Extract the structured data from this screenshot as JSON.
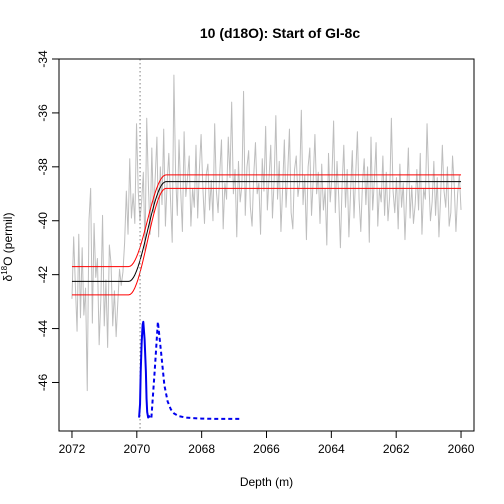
{
  "chart_data": {
    "type": "line",
    "title": "10 (d18O): Start of GI-8c",
    "xlabel": "Depth (m)",
    "ylabel_prefix": "δ",
    "ylabel_sup": "18",
    "ylabel_suffix": "O (permil)",
    "xlim": [
      2072.4,
      2059.6
    ],
    "ylim": [
      -47.8,
      -34.0
    ],
    "x_ticks": [
      2072,
      2070,
      2068,
      2066,
      2064,
      2062,
      2060
    ],
    "y_ticks": [
      -46,
      -44,
      -42,
      -40,
      -38,
      -36,
      -34
    ],
    "vline_x": 2069.9,
    "grey_series": {
      "x_start": 2072.0,
      "x_end": 2060.0,
      "values": [
        -42.9,
        -40.6,
        -42.4,
        -44.1,
        -40.5,
        -43.6,
        -41.0,
        -43.5,
        -42.5,
        -46.3,
        -40.0,
        -38.8,
        -43.8,
        -40.1,
        -42.1,
        -41.4,
        -44.6,
        -42.9,
        -39.8,
        -43.9,
        -42.2,
        -44.7,
        -40.9,
        -41.6,
        -43.9,
        -42.6,
        -44.3,
        -43.0,
        -41.8,
        -42.4,
        -41.9,
        -40.8,
        -38.9,
        -40.5,
        -37.7,
        -39.9,
        -39.0,
        -40.1,
        -36.4,
        -38.9,
        -40.0,
        -39.3,
        -38.2,
        -41.1,
        -36.2,
        -38.7,
        -40.5,
        -37.3,
        -39.7,
        -38.4,
        -36.9,
        -40.6,
        -38.0,
        -39.4,
        -36.6,
        -40.2,
        -38.6,
        -37.5,
        -39.2,
        -40.8,
        -34.6,
        -38.3,
        -39.8,
        -37.0,
        -38.9,
        -40.4,
        -36.7,
        -39.1,
        -38.4,
        -37.6,
        -40.2,
        -38.8,
        -39.5,
        -37.2,
        -39.9,
        -38.1,
        -36.8,
        -38.7,
        -40.1,
        -38.3,
        -37.9,
        -39.6,
        -38.5,
        -40.0,
        -36.4,
        -38.9,
        -39.7,
        -38.2,
        -37.0,
        -40.3,
        -38.6,
        -39.2,
        -36.9,
        -38.4,
        -35.6,
        -39.0,
        -38.1,
        -40.6,
        -37.8,
        -39.3,
        -38.7,
        -35.2,
        -39.8,
        -38.0,
        -37.4,
        -39.5,
        -40.2,
        -38.3,
        -37.1,
        -39.0,
        -38.6,
        -40.5,
        -37.7,
        -38.9,
        -36.5,
        -39.6,
        -38.4,
        -37.2,
        -39.9,
        -38.5,
        -36.1,
        -39.2,
        -37.8,
        -40.4,
        -38.8,
        -37.0,
        -39.5,
        -38.2,
        -36.6,
        -39.7,
        -40.3,
        -38.1,
        -37.6,
        -39.1,
        -38.6,
        -35.9,
        -39.4,
        -38.3,
        -40.7,
        -38.0,
        -37.3,
        -39.8,
        -38.5,
        -36.8,
        -39.0,
        -38.2,
        -40.1,
        -37.9,
        -39.6,
        -38.8,
        -40.9,
        -37.5,
        -39.3,
        -38.4,
        -36.3,
        -39.7,
        -37.8,
        -39.1,
        -41.0,
        -38.7,
        -37.2,
        -39.5,
        -38.1,
        -40.6,
        -38.9,
        -37.4,
        -39.9,
        -38.3,
        -36.7,
        -39.2,
        -40.4,
        -38.6,
        -37.7,
        -39.4,
        -38.0,
        -40.8,
        -36.9,
        -39.6,
        -38.5,
        -37.1,
        -40.2,
        -38.8,
        -39.3,
        -37.6,
        -39.8,
        -38.2,
        -40.0,
        -39.1,
        -36.2,
        -38.9,
        -39.7,
        -38.4,
        -40.3,
        -37.9,
        -39.5,
        -38.6,
        -40.7,
        -39.0,
        -37.3,
        -39.9,
        -38.7,
        -40.1,
        -39.4,
        -38.1,
        -39.6,
        -37.5,
        -40.5,
        -38.8,
        -39.2,
        -36.4,
        -38.5,
        -40.0,
        -39.3,
        -37.8,
        -39.8,
        -38.4,
        -40.6,
        -39.1,
        -37.2,
        -38.9,
        -39.5,
        -38.0,
        -40.2,
        -39.7,
        -37.6,
        -38.7,
        -40.4,
        -39.0,
        -38.3,
        -39.6
      ]
    },
    "ramp_model": {
      "x_transition_start": 2070.25,
      "x_transition_end": 2069.1,
      "center": {
        "y_before": -42.25,
        "y_after": -38.55
      },
      "upper": {
        "y_before": -41.7,
        "y_after": -38.3
      },
      "lower": {
        "y_before": -42.75,
        "y_after": -38.8
      }
    },
    "density_solid": {
      "x": [
        2069.93,
        2069.9,
        2069.88,
        2069.85,
        2069.82,
        2069.8,
        2069.76,
        2069.72,
        2069.7,
        2069.68,
        2069.65,
        2069.62,
        2069.6
      ],
      "y": [
        -47.3,
        -46.8,
        -45.6,
        -44.5,
        -43.85,
        -43.75,
        -44.4,
        -45.6,
        -46.6,
        -47.1,
        -47.3,
        -47.25,
        -47.3
      ]
    },
    "density_dashed": {
      "x": [
        2069.55,
        2069.45,
        2069.35,
        2069.25,
        2069.15,
        2069.05,
        2068.95,
        2068.85,
        2068.7,
        2068.5,
        2068.3,
        2068.0,
        2067.6,
        2067.2,
        2066.8
      ],
      "y": [
        -47.3,
        -45.6,
        -43.75,
        -44.9,
        -46.1,
        -46.7,
        -47.0,
        -47.15,
        -47.25,
        -47.3,
        -47.32,
        -47.34,
        -47.35,
        -47.35,
        -47.35
      ]
    },
    "colors": {
      "grey_series": "#bebebe",
      "center_line": "#000000",
      "bounds": "#ff0000",
      "density": "#0000ee",
      "vline": "#808080"
    }
  }
}
